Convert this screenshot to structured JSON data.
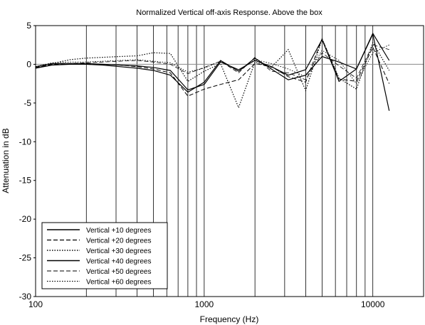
{
  "chart_data": {
    "type": "line",
    "title": "Normalized Vertical off-axis Response. Above the box",
    "xlabel": "Frequency (Hz)",
    "ylabel": "Attenuation in dB",
    "xscale": "log",
    "xlim": [
      100,
      20000
    ],
    "ylim": [
      -30,
      5
    ],
    "grid": "vertical lines at 1-2-3-...-9 decades, reference line at 0 dB",
    "legend_position": "bottom-left",
    "x_tick_labels": [
      "100",
      "1000",
      "10000"
    ],
    "y_tick_labels": [
      "5",
      "0",
      "-5",
      "-10",
      "-15",
      "-20",
      "-25",
      "-30"
    ],
    "x": [
      100,
      125,
      160,
      200,
      250,
      315,
      400,
      500,
      630,
      800,
      1000,
      1250,
      1600,
      2000,
      2500,
      3150,
      4000,
      5000,
      6300,
      8000,
      10000,
      12500
    ],
    "series": [
      {
        "name": "Vertical +10 degrees",
        "style": "solid",
        "width": 1.2,
        "values": [
          -0.3,
          0.1,
          0.1,
          0.1,
          0.0,
          -0.1,
          -0.2,
          -0.4,
          -0.8,
          -3.3,
          -2.6,
          0.3,
          -0.7,
          0.5,
          -0.3,
          -1.4,
          -0.7,
          3.2,
          -2.2,
          -0.6,
          3.9,
          -6.0
        ]
      },
      {
        "name": "Vertical +20 degrees",
        "style": "dashed",
        "width": 1,
        "values": [
          -0.5,
          0.0,
          0.0,
          0.0,
          0.0,
          -0.1,
          -0.3,
          -0.6,
          -1.1,
          -4.1,
          -3.2,
          -2.6,
          -2.0,
          0.1,
          -0.3,
          -1.6,
          -2.3,
          3.3,
          -1.9,
          -2.2,
          2.2,
          -2.5
        ]
      },
      {
        "name": "Vertical +30 degrees",
        "style": "dotted",
        "width": 1.2,
        "values": [
          -0.4,
          0.1,
          0.6,
          0.8,
          0.9,
          1.0,
          1.1,
          1.5,
          1.4,
          -2.2,
          -0.9,
          0.1,
          -5.6,
          0.3,
          -0.4,
          1.9,
          -3.4,
          3.3,
          -1.8,
          -3.2,
          2.8,
          -0.8
        ]
      },
      {
        "name": "Vertical +40 degrees",
        "style": "solid",
        "width": 1.2,
        "values": [
          -0.5,
          -0.1,
          0.0,
          0.0,
          -0.1,
          -0.3,
          -0.5,
          -0.8,
          -1.4,
          -3.6,
          -2.3,
          0.5,
          -0.9,
          0.8,
          -0.6,
          -2.0,
          -1.4,
          1.0,
          0.3,
          -0.6,
          4.0,
          0.5
        ]
      },
      {
        "name": "Vertical +50 degrees",
        "style": "dashed",
        "width": 0.8,
        "values": [
          -0.4,
          0.0,
          0.1,
          0.2,
          0.3,
          0.4,
          0.5,
          0.3,
          0.0,
          -1.2,
          -0.4,
          0.4,
          -1.1,
          0.9,
          -0.9,
          -1.1,
          -2.0,
          1.5,
          -0.2,
          -1.8,
          2.5,
          1.9
        ]
      },
      {
        "name": "Vertical +60 degrees",
        "style": "dotted",
        "width": 0.9,
        "values": [
          -0.3,
          0.2,
          0.3,
          0.3,
          0.4,
          0.5,
          0.6,
          0.4,
          0.2,
          -1.0,
          -0.5,
          0.4,
          -0.9,
          0.6,
          0.1,
          -0.6,
          -1.6,
          1.8,
          0.5,
          -2.5,
          1.5,
          2.5
        ]
      }
    ]
  }
}
